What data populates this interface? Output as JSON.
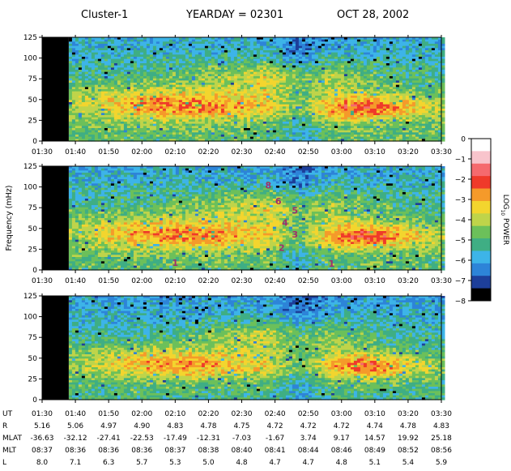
{
  "header": {
    "spacecraft": "Cluster-1",
    "yearday": "YEARDAY = 02301",
    "date": "OCT  28, 2002"
  },
  "chart_data": [
    {
      "type": "heatmap",
      "panel": 1,
      "x_ticks": [
        "01:30",
        "01:40",
        "01:50",
        "02:00",
        "02:10",
        "02:20",
        "02:30",
        "02:40",
        "02:50",
        "03:00",
        "03:10",
        "03:20",
        "03:30"
      ],
      "y_ticks": [
        0,
        25,
        50,
        75,
        100,
        125
      ],
      "ylim": [
        0,
        125
      ],
      "xlim": [
        "01:30",
        "03:30"
      ],
      "data_gap_until": "01:38",
      "annotations": []
    },
    {
      "type": "heatmap",
      "panel": 2,
      "x_ticks": [
        "01:30",
        "01:40",
        "01:50",
        "02:00",
        "02:10",
        "02:20",
        "02:30",
        "02:40",
        "02:50",
        "03:00",
        "03:10",
        "03:20",
        "03:30"
      ],
      "y_ticks": [
        0,
        25,
        50,
        75,
        100,
        125
      ],
      "ylim": [
        0,
        125
      ],
      "xlim": [
        "01:30",
        "03:30"
      ],
      "ylabel": "Frequency (mHz)",
      "data_gap_until": "01:38",
      "annotations": [
        {
          "text": "1",
          "time": "02:10",
          "freq": 9
        },
        {
          "text": "8",
          "time": "02:38",
          "freq": 102
        },
        {
          "text": "6",
          "time": "02:41",
          "freq": 83
        },
        {
          "text": "5",
          "time": "02:46",
          "freq": 72
        },
        {
          "text": "4",
          "time": "02:43",
          "freq": 57
        },
        {
          "text": "3",
          "time": "02:46",
          "freq": 43
        },
        {
          "text": "2",
          "time": "02:42",
          "freq": 27
        },
        {
          "text": "1",
          "time": "02:57",
          "freq": 8
        }
      ]
    },
    {
      "type": "heatmap",
      "panel": 3,
      "x_ticks": [
        "01:30",
        "01:40",
        "01:50",
        "02:00",
        "02:10",
        "02:20",
        "02:30",
        "02:40",
        "02:50",
        "03:00",
        "03:10",
        "03:20",
        "03:30"
      ],
      "y_ticks": [
        0,
        25,
        50,
        75,
        100,
        125
      ],
      "ylim": [
        0,
        125
      ],
      "xlim": [
        "01:30",
        "03:30"
      ],
      "data_gap_until": "01:38",
      "annotations": []
    }
  ],
  "colorbar": {
    "ticks": [
      "0",
      "−1",
      "−2",
      "−3",
      "−4",
      "−5",
      "−6",
      "−7",
      "−8"
    ],
    "values": [
      0,
      -1,
      -2,
      -3,
      -4,
      -5,
      -6,
      -7,
      -8
    ],
    "label_main": "LOG",
    "label_sub": "10",
    "label_tail": "POWER",
    "colors": [
      "#ffffff",
      "#f8c4cc",
      "#f56a6e",
      "#ef3a2a",
      "#f59a2a",
      "#f3d52e",
      "#bfd44a",
      "#6cc05a",
      "#3fae84",
      "#3db4e8",
      "#2d84d8",
      "#1d3f9a",
      "#000000"
    ]
  },
  "ephemeris": {
    "rows": [
      {
        "label": "UT",
        "values": [
          "01:30",
          "01:40",
          "01:50",
          "02:00",
          "02:10",
          "02:20",
          "02:30",
          "02:40",
          "02:50",
          "03:00",
          "03:10",
          "03:20",
          "03:30"
        ]
      },
      {
        "label": "R",
        "values": [
          "5.16",
          "5.06",
          "4.97",
          "4.90",
          "4.83",
          "4.78",
          "4.75",
          "4.72",
          "4.72",
          "4.72",
          "4.74",
          "4.78",
          "4.83"
        ]
      },
      {
        "label": "MLAT",
        "values": [
          "-36.63",
          "-32.12",
          "-27.41",
          "-22.53",
          "-17.49",
          "-12.31",
          "-7.03",
          "-1.67",
          "3.74",
          "9.17",
          "14.57",
          "19.92",
          "25.18"
        ]
      },
      {
        "label": "MLT",
        "values": [
          "08:37",
          "08:36",
          "08:36",
          "08:36",
          "08:37",
          "08:38",
          "08:40",
          "08:41",
          "08:44",
          "08:46",
          "08:49",
          "08:52",
          "08:56"
        ]
      },
      {
        "label": "L",
        "values": [
          "8.0",
          "7.1",
          "6.3",
          "5.7",
          "5.3",
          "5.0",
          "4.8",
          "4.7",
          "4.7",
          "4.8",
          "5.1",
          "5.4",
          "5.9"
        ]
      }
    ]
  }
}
